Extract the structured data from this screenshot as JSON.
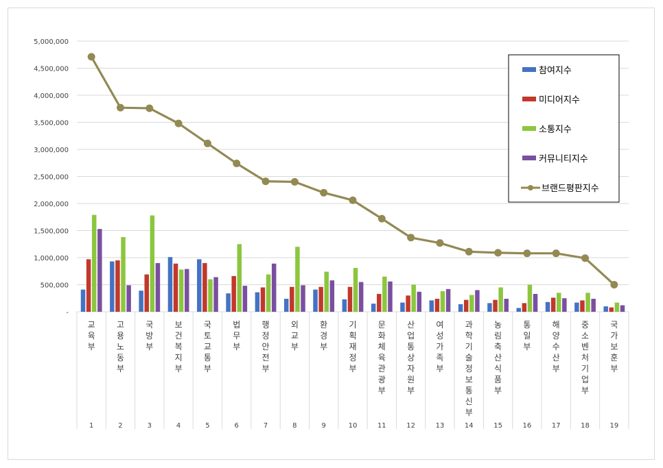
{
  "chart_data": {
    "type": "bar",
    "title": "",
    "xlabel": "",
    "ylabel": "",
    "ylim": [
      0,
      5000000
    ],
    "yticks": [
      "-",
      "500,000",
      "1,000,000",
      "1,500,000",
      "2,000,000",
      "2,500,000",
      "3,000,000",
      "3,500,000",
      "4,000,000",
      "4,500,000",
      "5,000,000"
    ],
    "grid": true,
    "legend_position": "top-right",
    "ranks": [
      "1",
      "2",
      "3",
      "4",
      "5",
      "6",
      "7",
      "8",
      "9",
      "10",
      "11",
      "12",
      "13",
      "14",
      "15",
      "16",
      "17",
      "18",
      "19"
    ],
    "categories": [
      "교육부",
      "고용노동부",
      "국방부",
      "보건복지부",
      "국토교통부",
      "법무부",
      "행정안전부",
      "외교부",
      "환경부",
      "기획재정부",
      "문화체육관광부",
      "산업통상자원부",
      "여성가족부",
      "과학기술정보통신부",
      "농림축산식품부",
      "통일부",
      "해양수산부",
      "중소벤처기업부",
      "국가보훈부"
    ],
    "series": [
      {
        "name": "참여지수",
        "color": "#4472C4",
        "values": [
          410000,
          930000,
          390000,
          1010000,
          970000,
          340000,
          360000,
          240000,
          410000,
          230000,
          150000,
          170000,
          210000,
          140000,
          160000,
          70000,
          180000,
          170000,
          100000
        ]
      },
      {
        "name": "미디어지수",
        "color": "#C0392B",
        "values": [
          970000,
          950000,
          690000,
          890000,
          900000,
          660000,
          450000,
          460000,
          460000,
          460000,
          330000,
          300000,
          240000,
          220000,
          220000,
          160000,
          260000,
          210000,
          80000
        ]
      },
      {
        "name": "소통지수",
        "color": "#8CC63F",
        "values": [
          1790000,
          1380000,
          1780000,
          780000,
          600000,
          1250000,
          690000,
          1200000,
          740000,
          810000,
          650000,
          500000,
          380000,
          310000,
          450000,
          500000,
          350000,
          350000,
          170000
        ]
      },
      {
        "name": "커뮤니티지수",
        "color": "#7A4FA0",
        "values": [
          1530000,
          490000,
          900000,
          790000,
          640000,
          480000,
          890000,
          490000,
          580000,
          550000,
          560000,
          370000,
          420000,
          400000,
          240000,
          330000,
          250000,
          240000,
          120000
        ]
      }
    ],
    "line": {
      "name": "브랜드평판지수",
      "color": "#938953",
      "values": [
        4710000,
        3770000,
        3760000,
        3480000,
        3110000,
        2740000,
        2410000,
        2400000,
        2200000,
        2060000,
        1720000,
        1370000,
        1270000,
        1110000,
        1090000,
        1080000,
        1080000,
        990000,
        500000
      ]
    }
  }
}
